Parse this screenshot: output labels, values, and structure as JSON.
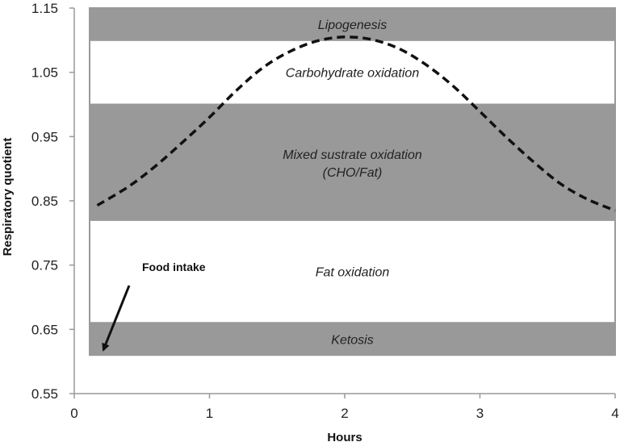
{
  "chart_data": {
    "type": "line",
    "xlabel": "Hours",
    "ylabel": "Respiratory quotient",
    "xlim": [
      0,
      4
    ],
    "ylim": [
      0.55,
      1.15
    ],
    "xticks": [
      "0",
      "1",
      "2",
      "3",
      "4"
    ],
    "yticks": [
      "0.55",
      "0.65",
      "0.75",
      "0.85",
      "0.95",
      "1.05",
      "1.15"
    ],
    "grid": false,
    "legend": "none",
    "bands": [
      {
        "label": "Lipogenesis",
        "y0": 1.1,
        "y1": 1.15,
        "fill": "#999999"
      },
      {
        "label": "Carbohydrate oxidation",
        "y0": 1.0,
        "y1": 1.1,
        "fill": "#ffffff"
      },
      {
        "label": "Mixed sustrate oxidation",
        "label2": "(CHO/Fat)",
        "y0": 0.82,
        "y1": 1.0,
        "fill": "#999999"
      },
      {
        "label": "Fat oxidation",
        "y0": 0.66,
        "y1": 0.82,
        "fill": "#ffffff"
      },
      {
        "label": "Ketosis",
        "y0": 0.61,
        "y1": 0.66,
        "fill": "#999999"
      }
    ],
    "series": [
      {
        "style": "dashed",
        "x": [
          0.17,
          0.4,
          0.6,
          0.8,
          1.0,
          1.2,
          1.4,
          1.6,
          1.8,
          2.0,
          2.2,
          2.4,
          2.6,
          2.8,
          3.0,
          3.2,
          3.4,
          3.6,
          3.8,
          4.0
        ],
        "y": [
          0.843,
          0.872,
          0.904,
          0.941,
          0.98,
          1.022,
          1.058,
          1.083,
          1.099,
          1.105,
          1.101,
          1.087,
          1.062,
          1.029,
          0.989,
          0.948,
          0.91,
          0.876,
          0.852,
          0.835
        ]
      }
    ],
    "annotation": {
      "text": "Food intake",
      "x": 0.2,
      "y": 0.6
    }
  }
}
